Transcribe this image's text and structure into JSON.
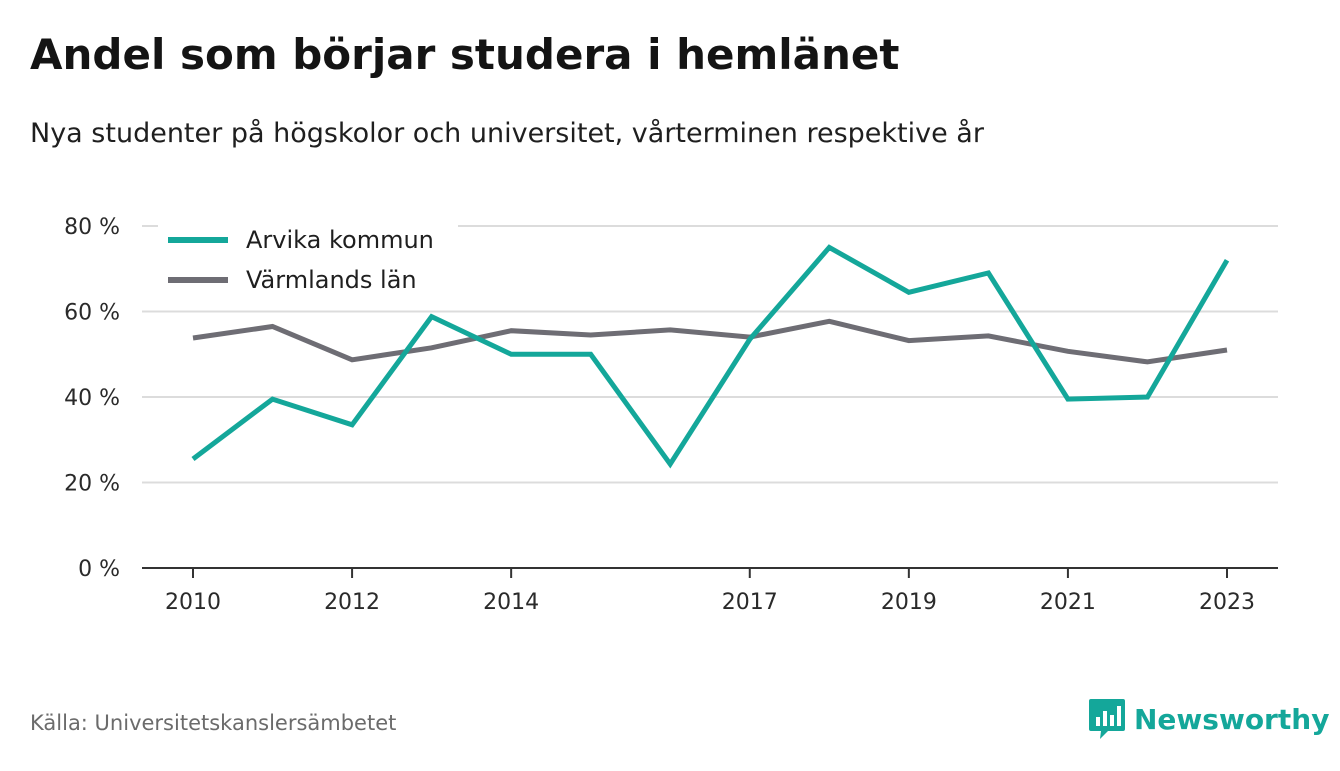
{
  "header": {
    "title": "Andel som börjar studera i hemlänet",
    "subtitle": "Nya studenter på högskolor och universitet, vårterminen respektive år"
  },
  "footer": {
    "source": "Källa: Universitetskanslersämbetet",
    "brand": "Newsworthy",
    "brand_icon": "newsworthy-logo-icon"
  },
  "colors": {
    "arvika": "#14a79a",
    "varmland": "#6e6d74",
    "grid": "#dcdcdc",
    "axis": "#333333",
    "brand": "#14a79a"
  },
  "chart_data": {
    "type": "line",
    "x": [
      2010,
      2011,
      2012,
      2013,
      2014,
      2015,
      2016,
      2017,
      2018,
      2019,
      2020,
      2021,
      2022,
      2023
    ],
    "xticks": [
      "2010",
      "2012",
      "2014",
      "2017",
      "2019",
      "2021",
      "2023"
    ],
    "xtick_values": [
      2010,
      2012,
      2014,
      2017,
      2019,
      2021,
      2023
    ],
    "yticks": [
      "0 %",
      "20 %",
      "40 %",
      "60 %",
      "80 %"
    ],
    "ytick_values": [
      0,
      20,
      40,
      60,
      80
    ],
    "ylim": [
      0,
      80
    ],
    "xlim": [
      2010,
      2023
    ],
    "grid": true,
    "legend_position": "top-left",
    "series": [
      {
        "name": "Arvika kommun",
        "color": "#14a79a",
        "values": [
          25.5,
          39.5,
          33.5,
          58.8,
          50.0,
          50.0,
          24.3,
          53.5,
          75.0,
          64.5,
          69.0,
          39.5,
          40.0,
          72.0
        ]
      },
      {
        "name": "Värmlands län",
        "color": "#6e6d74",
        "values": [
          53.8,
          56.5,
          48.7,
          51.5,
          55.5,
          54.5,
          55.7,
          54.0,
          57.7,
          53.2,
          54.3,
          50.7,
          48.2,
          51.0
        ]
      }
    ]
  }
}
